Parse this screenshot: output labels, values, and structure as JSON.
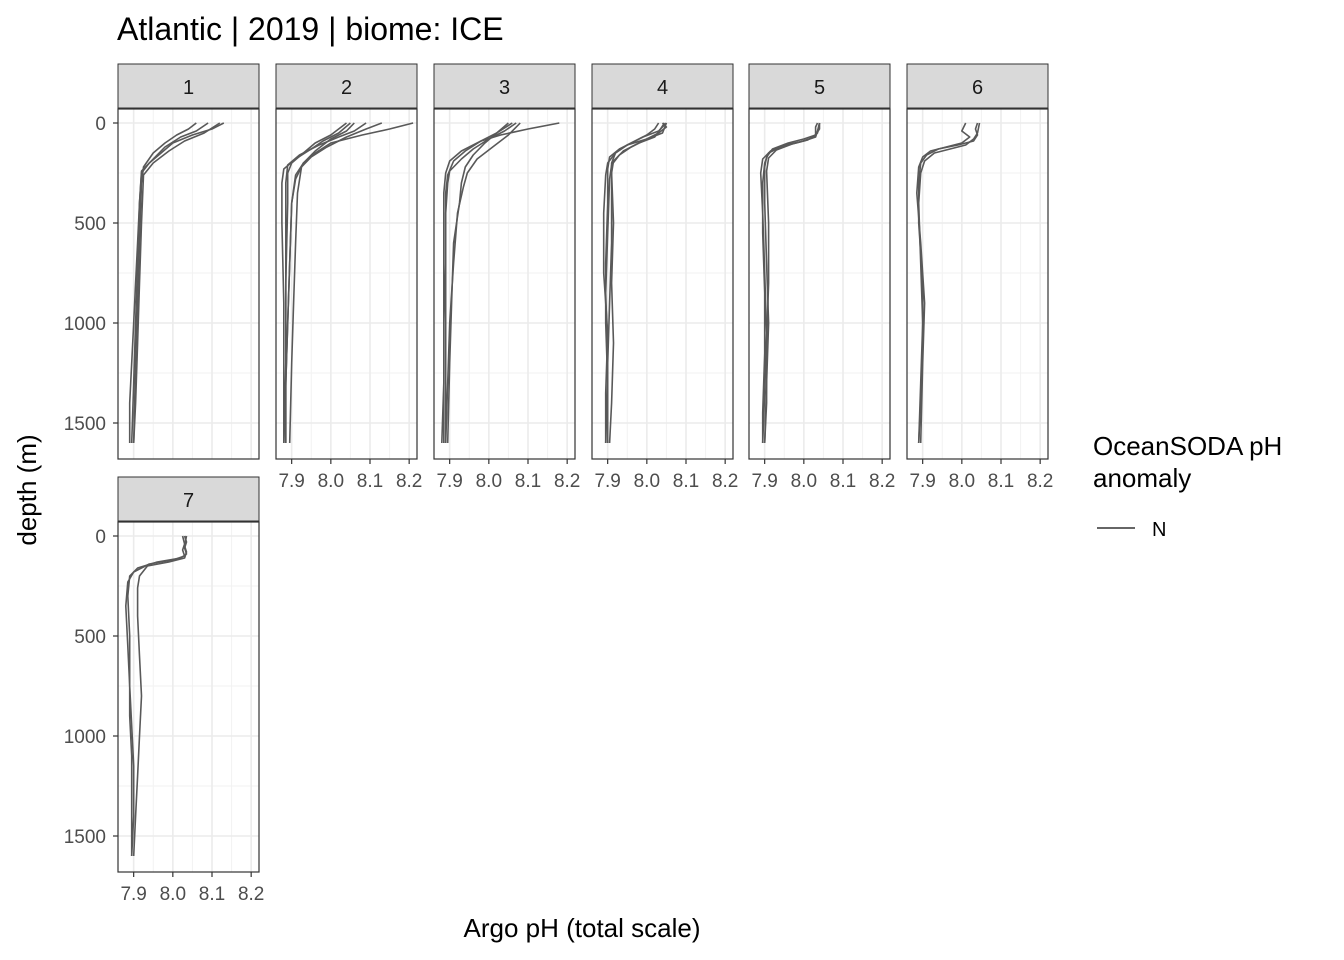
{
  "chart_data": {
    "type": "line",
    "title": "Atlantic | 2019 | biome: ICE",
    "xlabel": "Argo pH (total scale)",
    "ylabel": "depth (m)",
    "xlim": [
      7.86,
      8.22
    ],
    "ylim": [
      1680,
      -70
    ],
    "y_reversed": true,
    "x_ticks": [
      "7.9",
      "8.0",
      "8.1",
      "8.2"
    ],
    "x_tick_values": [
      7.9,
      8.0,
      8.1,
      8.2
    ],
    "y_ticks": [
      "0",
      "500",
      "1000",
      "1500"
    ],
    "y_tick_values": [
      0,
      500,
      1000,
      1500
    ],
    "grid": true,
    "legend": {
      "title_lines": [
        "OceanSODA pH",
        "anomaly"
      ],
      "entries": [
        {
          "label": "N",
          "color": "#666666"
        }
      ],
      "position": "right"
    },
    "series_color": "#595959",
    "panels": [
      {
        "label": "1",
        "profiles": [
          {
            "depth": [
              0,
              30,
              60,
              100,
              150,
              200,
              250,
              400,
              600,
              800,
              1000,
              1200,
              1400,
              1600
            ],
            "ph": [
              8.13,
              8.1,
              8.05,
              8.0,
              7.97,
              7.94,
              7.92,
              7.915,
              7.91,
              7.905,
              7.9,
              7.895,
              7.89,
              7.89
            ]
          },
          {
            "depth": [
              0,
              40,
              70,
              120,
              180,
              240,
              400,
              700,
              1000,
              1300,
              1600
            ],
            "ph": [
              8.09,
              8.06,
              8.02,
              7.98,
              7.95,
              7.92,
              7.915,
              7.91,
              7.905,
              7.9,
              7.895
            ]
          },
          {
            "depth": [
              0,
              30,
              60,
              100,
              150,
              220,
              300,
              600,
              900,
              1200,
              1600
            ],
            "ph": [
              8.06,
              8.04,
              8.01,
              7.98,
              7.95,
              7.925,
              7.92,
              7.915,
              7.91,
              7.905,
              7.9
            ]
          },
          {
            "depth": [
              0,
              50,
              90,
              140,
              200,
              260,
              500,
              800,
              1100,
              1400,
              1600
            ],
            "ph": [
              8.12,
              8.08,
              8.03,
              7.99,
              7.95,
              7.925,
              7.92,
              7.915,
              7.91,
              7.905,
              7.9
            ]
          }
        ]
      },
      {
        "label": "2",
        "profiles": [
          {
            "depth": [
              0,
              30,
              60,
              100,
              150,
              200,
              280,
              400,
              700,
              1000,
              1300,
              1600
            ],
            "ph": [
              8.21,
              8.15,
              8.08,
              8.0,
              7.96,
              7.93,
              7.91,
              7.9,
              7.895,
              7.89,
              7.885,
              7.88
            ]
          },
          {
            "depth": [
              0,
              40,
              70,
              110,
              160,
              210,
              300,
              500,
              800,
              1100,
              1400,
              1600
            ],
            "ph": [
              8.09,
              8.06,
              8.02,
              7.97,
              7.92,
              7.89,
              7.885,
              7.885,
              7.885,
              7.885,
              7.885,
              7.885
            ]
          },
          {
            "depth": [
              0,
              50,
              90,
              130,
              180,
              230,
              300,
              500,
              900,
              1200,
              1600
            ],
            "ph": [
              8.05,
              8.02,
              7.98,
              7.95,
              7.91,
              7.88,
              7.875,
              7.875,
              7.88,
              7.88,
              7.88
            ]
          },
          {
            "depth": [
              0,
              30,
              70,
              120,
              170,
              220,
              350,
              600,
              900,
              1200,
              1600
            ],
            "ph": [
              8.13,
              8.09,
              8.04,
              7.99,
              7.95,
              7.925,
              7.915,
              7.91,
              7.905,
              7.9,
              7.895
            ]
          },
          {
            "depth": [
              0,
              40,
              80,
              140,
              200,
              260,
              400,
              700,
              1000,
              1300,
              1600
            ],
            "ph": [
              8.06,
              8.04,
              8.0,
              7.96,
              7.93,
              7.91,
              7.9,
              7.895,
              7.89,
              7.885,
              7.885
            ]
          },
          {
            "depth": [
              0,
              60,
              100,
              150,
              200,
              250,
              400,
              800,
              1200,
              1600
            ],
            "ph": [
              8.04,
              8.0,
              7.96,
              7.93,
              7.9,
              7.89,
              7.89,
              7.885,
              7.885,
              7.88
            ]
          }
        ]
      },
      {
        "label": "3",
        "profiles": [
          {
            "depth": [
              0,
              30,
              60,
              90,
              140,
              190,
              250,
              350,
              500,
              800,
              1100,
              1400,
              1600
            ],
            "ph": [
              8.18,
              8.1,
              8.03,
              7.98,
              7.93,
              7.9,
              7.89,
              7.885,
              7.885,
              7.885,
              7.885,
              7.885,
              7.885
            ]
          },
          {
            "depth": [
              0,
              40,
              80,
              130,
              180,
              240,
              300,
              450,
              700,
              1000,
              1300,
              1600
            ],
            "ph": [
              8.07,
              8.04,
              8.0,
              7.96,
              7.93,
              7.9,
              7.895,
              7.89,
              7.89,
              7.885,
              7.885,
              7.88
            ]
          },
          {
            "depth": [
              0,
              50,
              100,
              160,
              220,
              300,
              400,
              600,
              900,
              1200,
              1600
            ],
            "ph": [
              8.05,
              8.02,
              7.99,
              7.96,
              7.94,
              7.93,
              7.925,
              7.91,
              7.905,
              7.9,
              7.895
            ]
          },
          {
            "depth": [
              0,
              60,
              120,
              180,
              250,
              320,
              450,
              700,
              1000,
              1300,
              1600
            ],
            "ph": [
              8.08,
              8.05,
              8.01,
              7.97,
              7.945,
              7.935,
              7.92,
              7.91,
              7.9,
              7.895,
              7.89
            ]
          },
          {
            "depth": [
              0,
              50,
              90,
              140,
              190,
              260,
              350,
              500,
              800,
              1200,
              1600
            ],
            "ph": [
              8.06,
              8.02,
              7.98,
              7.94,
              7.91,
              7.895,
              7.89,
              7.89,
              7.89,
              7.89,
              7.89
            ]
          }
        ]
      },
      {
        "label": "4",
        "profiles": [
          {
            "depth": [
              0,
              20,
              50,
              80,
              110,
              150,
              200,
              300,
              600,
              900,
              1200,
              1600
            ],
            "ph": [
              8.04,
              8.05,
              8.03,
              8.0,
              7.95,
              7.92,
              7.91,
              7.91,
              7.91,
              7.905,
              7.9,
              7.9
            ]
          },
          {
            "depth": [
              0,
              30,
              60,
              90,
              130,
              170,
              230,
              400,
              700,
              1000,
              1300,
              1600
            ],
            "ph": [
              8.03,
              8.02,
              8.0,
              7.97,
              7.93,
              7.905,
              7.9,
              7.9,
              7.895,
              7.895,
              7.9,
              7.895
            ]
          },
          {
            "depth": [
              0,
              40,
              70,
              110,
              150,
              200,
              260,
              450,
              750,
              1050,
              1350,
              1600
            ],
            "ph": [
              8.05,
              8.03,
              7.99,
              7.95,
              7.92,
              7.9,
              7.895,
              7.89,
              7.89,
              7.9,
              7.895,
              7.895
            ]
          },
          {
            "depth": [
              0,
              30,
              70,
              100,
              140,
              190,
              250,
              500,
              800,
              1100,
              1400,
              1600
            ],
            "ph": [
              8.045,
              8.035,
              8.02,
              7.98,
              7.94,
              7.915,
              7.91,
              7.915,
              7.91,
              7.915,
              7.91,
              7.905
            ]
          },
          {
            "depth": [
              0,
              50,
              80,
              120,
              160,
              210,
              280,
              550,
              850,
              1150,
              1450,
              1600
            ],
            "ph": [
              8.05,
              8.04,
              8.0,
              7.96,
              7.93,
              7.91,
              7.905,
              7.9,
              7.895,
              7.9,
              7.9,
              7.9
            ]
          }
        ]
      },
      {
        "label": "5",
        "profiles": [
          {
            "depth": [
              0,
              30,
              60,
              80,
              100,
              130,
              170,
              220,
              400,
              700,
              1000,
              1300,
              1600
            ],
            "ph": [
              8.04,
              8.04,
              8.03,
              8.0,
              7.96,
              7.92,
              7.905,
              7.9,
              7.9,
              7.905,
              7.91,
              7.905,
              7.9
            ]
          },
          {
            "depth": [
              0,
              40,
              70,
              90,
              110,
              140,
              180,
              250,
              450,
              750,
              1050,
              1350,
              1600
            ],
            "ph": [
              8.04,
              8.035,
              8.03,
              8.0,
              7.95,
              7.915,
              7.895,
              7.89,
              7.895,
              7.9,
              7.905,
              7.9,
              7.895
            ]
          },
          {
            "depth": [
              0,
              20,
              60,
              85,
              105,
              135,
              175,
              240,
              500,
              800,
              1100,
              1400,
              1600
            ],
            "ph": [
              8.035,
              8.03,
              8.03,
              8.01,
              7.97,
              7.93,
              7.91,
              7.905,
              7.91,
              7.91,
              7.905,
              7.905,
              7.9
            ]
          },
          {
            "depth": [
              0,
              50,
              75,
              95,
              120,
              150,
              200,
              300,
              550,
              850,
              1150,
              1450,
              1600
            ],
            "ph": [
              8.04,
              8.035,
              8.02,
              7.99,
              7.94,
              7.91,
              7.9,
              7.895,
              7.895,
              7.9,
              7.9,
              7.895,
              7.895
            ]
          }
        ]
      },
      {
        "label": "6",
        "profiles": [
          {
            "depth": [
              0,
              30,
              60,
              90,
              110,
              130,
              160,
              200,
              300,
              500,
              800,
              1100,
              1400,
              1600
            ],
            "ph": [
              8.04,
              8.035,
              8.04,
              8.03,
              7.99,
              7.94,
              7.91,
              7.895,
              7.89,
              7.89,
              7.9,
              7.9,
              7.895,
              7.89
            ]
          },
          {
            "depth": [
              0,
              40,
              70,
              100,
              120,
              140,
              170,
              220,
              350,
              600,
              900,
              1200,
              1600
            ],
            "ph": [
              8.01,
              8.0,
              8.02,
              8.0,
              7.96,
              7.92,
              7.9,
              7.89,
              7.885,
              7.895,
              7.905,
              7.9,
              7.895
            ]
          },
          {
            "depth": [
              0,
              50,
              80,
              110,
              130,
              150,
              190,
              250,
              400,
              700,
              1000,
              1300,
              1600
            ],
            "ph": [
              8.045,
              8.04,
              8.03,
              8.01,
              7.97,
              7.93,
              7.905,
              7.895,
              7.89,
              7.895,
              7.9,
              7.895,
              7.89
            ]
          }
        ]
      },
      {
        "label": "7",
        "profiles": [
          {
            "depth": [
              0,
              30,
              60,
              90,
              110,
              130,
              160,
              200,
              300,
              500,
              700,
              900,
              1100,
              1300,
              1600
            ],
            "ph": [
              8.03,
              8.035,
              8.03,
              8.035,
              8.02,
              7.96,
              7.91,
              7.89,
              7.885,
              7.89,
              7.89,
              7.89,
              7.895,
              7.895,
              7.895
            ]
          },
          {
            "depth": [
              0,
              40,
              70,
              100,
              120,
              140,
              180,
              230,
              350,
              550,
              750,
              950,
              1150,
              1400,
              1600
            ],
            "ph": [
              8.025,
              8.03,
              8.025,
              8.03,
              8.0,
              7.94,
              7.9,
              7.885,
              7.88,
              7.885,
              7.89,
              7.895,
              7.9,
              7.9,
              7.895
            ]
          },
          {
            "depth": [
              0,
              50,
              80,
              110,
              130,
              150,
              200,
              260,
              400,
              600,
              800,
              1000,
              1200,
              1400,
              1600
            ],
            "ph": [
              8.035,
              8.03,
              8.035,
              8.03,
              7.99,
              7.935,
              7.915,
              7.91,
              7.91,
              7.915,
              7.92,
              7.915,
              7.91,
              7.905,
              7.9
            ]
          }
        ]
      }
    ]
  }
}
